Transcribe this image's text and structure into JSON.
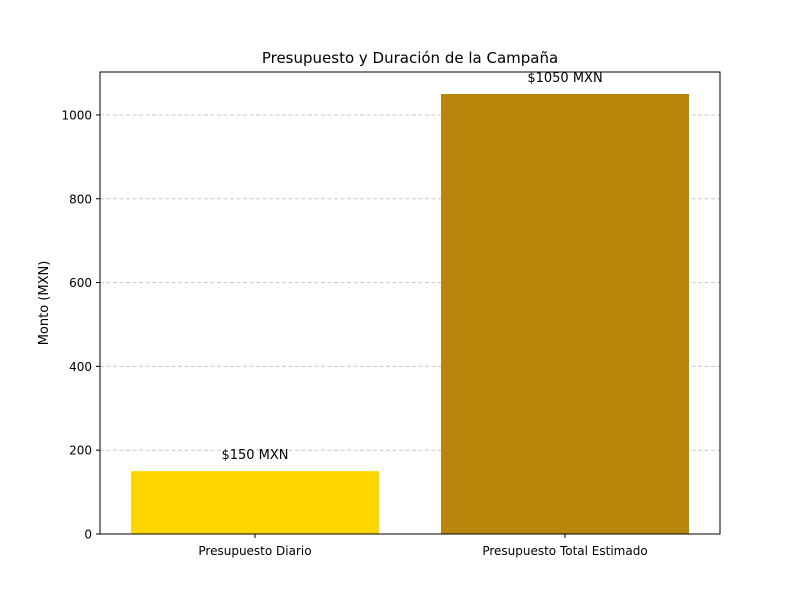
{
  "chart_data": {
    "type": "bar",
    "title": "Presupuesto y Duración de la Campaña",
    "xlabel": "",
    "ylabel": "Monto (MXN)",
    "categories": [
      "Presupuesto Diario",
      "Presupuesto Total Estimado"
    ],
    "values": [
      150,
      1050
    ],
    "data_labels": [
      "$150 MXN",
      "$1050 MXN"
    ],
    "colors": [
      "#FFD700",
      "#B8860B"
    ],
    "ylim": [
      0,
      1102.5
    ],
    "yticks": [
      0,
      200,
      400,
      600,
      800,
      1000
    ],
    "ytick_labels": [
      "0",
      "200",
      "400",
      "600",
      "800",
      "1000"
    ],
    "grid": "y-dashed",
    "grid_color": "#c8c8c8"
  }
}
